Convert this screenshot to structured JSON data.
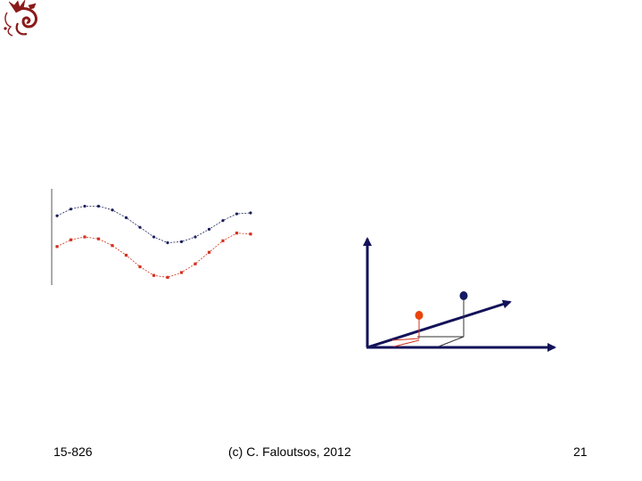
{
  "logo": {
    "icon": "dragon-logo-icon",
    "color": "#8b1a1a"
  },
  "footer": {
    "course": "15-826",
    "copyright": "(c) C. Faloutsos, 2012",
    "slide_number": "21"
  },
  "colors": {
    "series_dark": "#1a1f5c",
    "series_red": "#d2301e",
    "axis": "#12125a",
    "point_orange": "#e8440c",
    "point_navy": "#141a63"
  },
  "chart_data": {
    "type": "line",
    "series": [
      {
        "values": [
          0.72,
          0.79,
          0.82,
          0.82,
          0.78,
          0.7,
          0.6,
          0.5,
          0.44,
          0.45,
          0.5,
          0.58,
          0.67,
          0.74,
          0.75
        ]
      },
      {
        "values": [
          0.4,
          0.47,
          0.5,
          0.48,
          0.41,
          0.31,
          0.19,
          0.1,
          0.08,
          0.13,
          0.22,
          0.34,
          0.46,
          0.54,
          0.53
        ]
      }
    ]
  }
}
